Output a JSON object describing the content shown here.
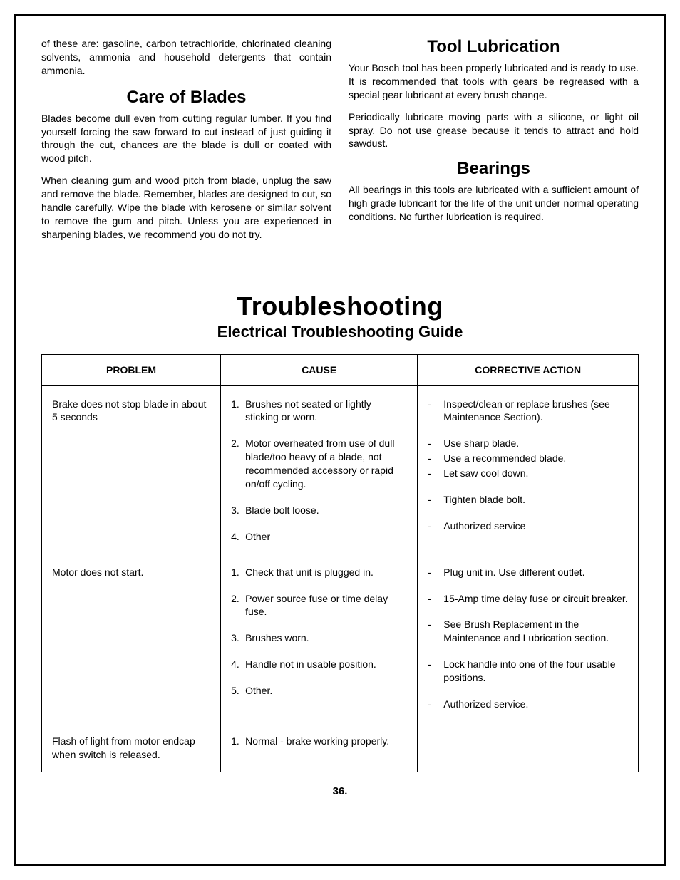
{
  "left_column": {
    "intro": "of these are: gasoline, carbon tetrachloride, chlorinated cleaning solvents, ammonia and household detergents that contain ammonia.",
    "heading": "Care of Blades",
    "p1": "Blades become dull even from cutting regular lumber. If you find yourself forcing the saw forward to cut instead of just guiding it through the cut, chances are the blade is dull or coated with wood pitch.",
    "p2": "When cleaning gum and wood pitch from blade, unplug the saw and remove the blade. Remember, blades are designed to cut, so handle carefully. Wipe the blade with kerosene or similar solvent to remove the gum and pitch. Unless you are experienced in sharpening blades, we recommend you do not try."
  },
  "right_column": {
    "heading1": "Tool Lubrication",
    "p1": "Your Bosch tool has been properly lubricated and is ready to use. It is recommended that tools with gears be regreased with a special gear lubricant at every brush change.",
    "p2": "Periodically lubricate moving parts with a silicone, or light oil spray. Do not use grease because it tends to attract and hold sawdust.",
    "heading2": "Bearings",
    "p3": "All bearings in this tools are lubricated with a sufficient amount of high grade lubricant for the life of the unit under normal operating conditions. No further lubrication is required."
  },
  "main_heading": "Troubleshooting",
  "sub_heading": "Electrical Troubleshooting Guide",
  "table": {
    "headers": {
      "problem": "PROBLEM",
      "cause": "CAUSE",
      "action": "CORRECTIVE ACTION"
    },
    "rows": [
      {
        "problem": "Brake does not stop blade in about 5 seconds",
        "causes": [
          {
            "num": "1.",
            "text": "Brushes not seated or lightly sticking or worn."
          },
          {
            "num": "2.",
            "text": "Motor overheated from use of dull blade/too heavy of a blade, not recommended accessory or rapid on/off cycling."
          },
          {
            "num": "3.",
            "text": "Blade bolt loose."
          },
          {
            "num": "4.",
            "text": "Other"
          }
        ],
        "actions": [
          [
            "Inspect/clean or replace brushes (see Maintenance Section)."
          ],
          [
            "Use sharp blade.",
            "Use a recommended blade.",
            "Let saw cool down."
          ],
          [
            "Tighten blade bolt."
          ],
          [
            "Authorized service"
          ]
        ]
      },
      {
        "problem": "Motor does not start.",
        "causes": [
          {
            "num": "1.",
            "text": "Check that unit is plugged in."
          },
          {
            "num": "2.",
            "text": "Power source fuse or time delay fuse."
          },
          {
            "num": "3.",
            "text": "Brushes worn."
          },
          {
            "num": "4.",
            "text": "Handle not in usable position."
          },
          {
            "num": "5.",
            "text": "Other."
          }
        ],
        "actions": [
          [
            "Plug unit in. Use different outlet."
          ],
          [
            "15-Amp time delay fuse or circuit breaker."
          ],
          [
            "See Brush Replacement in the Maintenance and Lubrication section."
          ],
          [
            "Lock handle into one of the four usable positions."
          ],
          [
            "Authorized service."
          ]
        ]
      },
      {
        "problem": "Flash of light from motor endcap when switch is released.",
        "causes": [
          {
            "num": "1.",
            "text": "Normal - brake working properly."
          }
        ],
        "actions": [
          []
        ]
      }
    ]
  },
  "page_number": "36."
}
